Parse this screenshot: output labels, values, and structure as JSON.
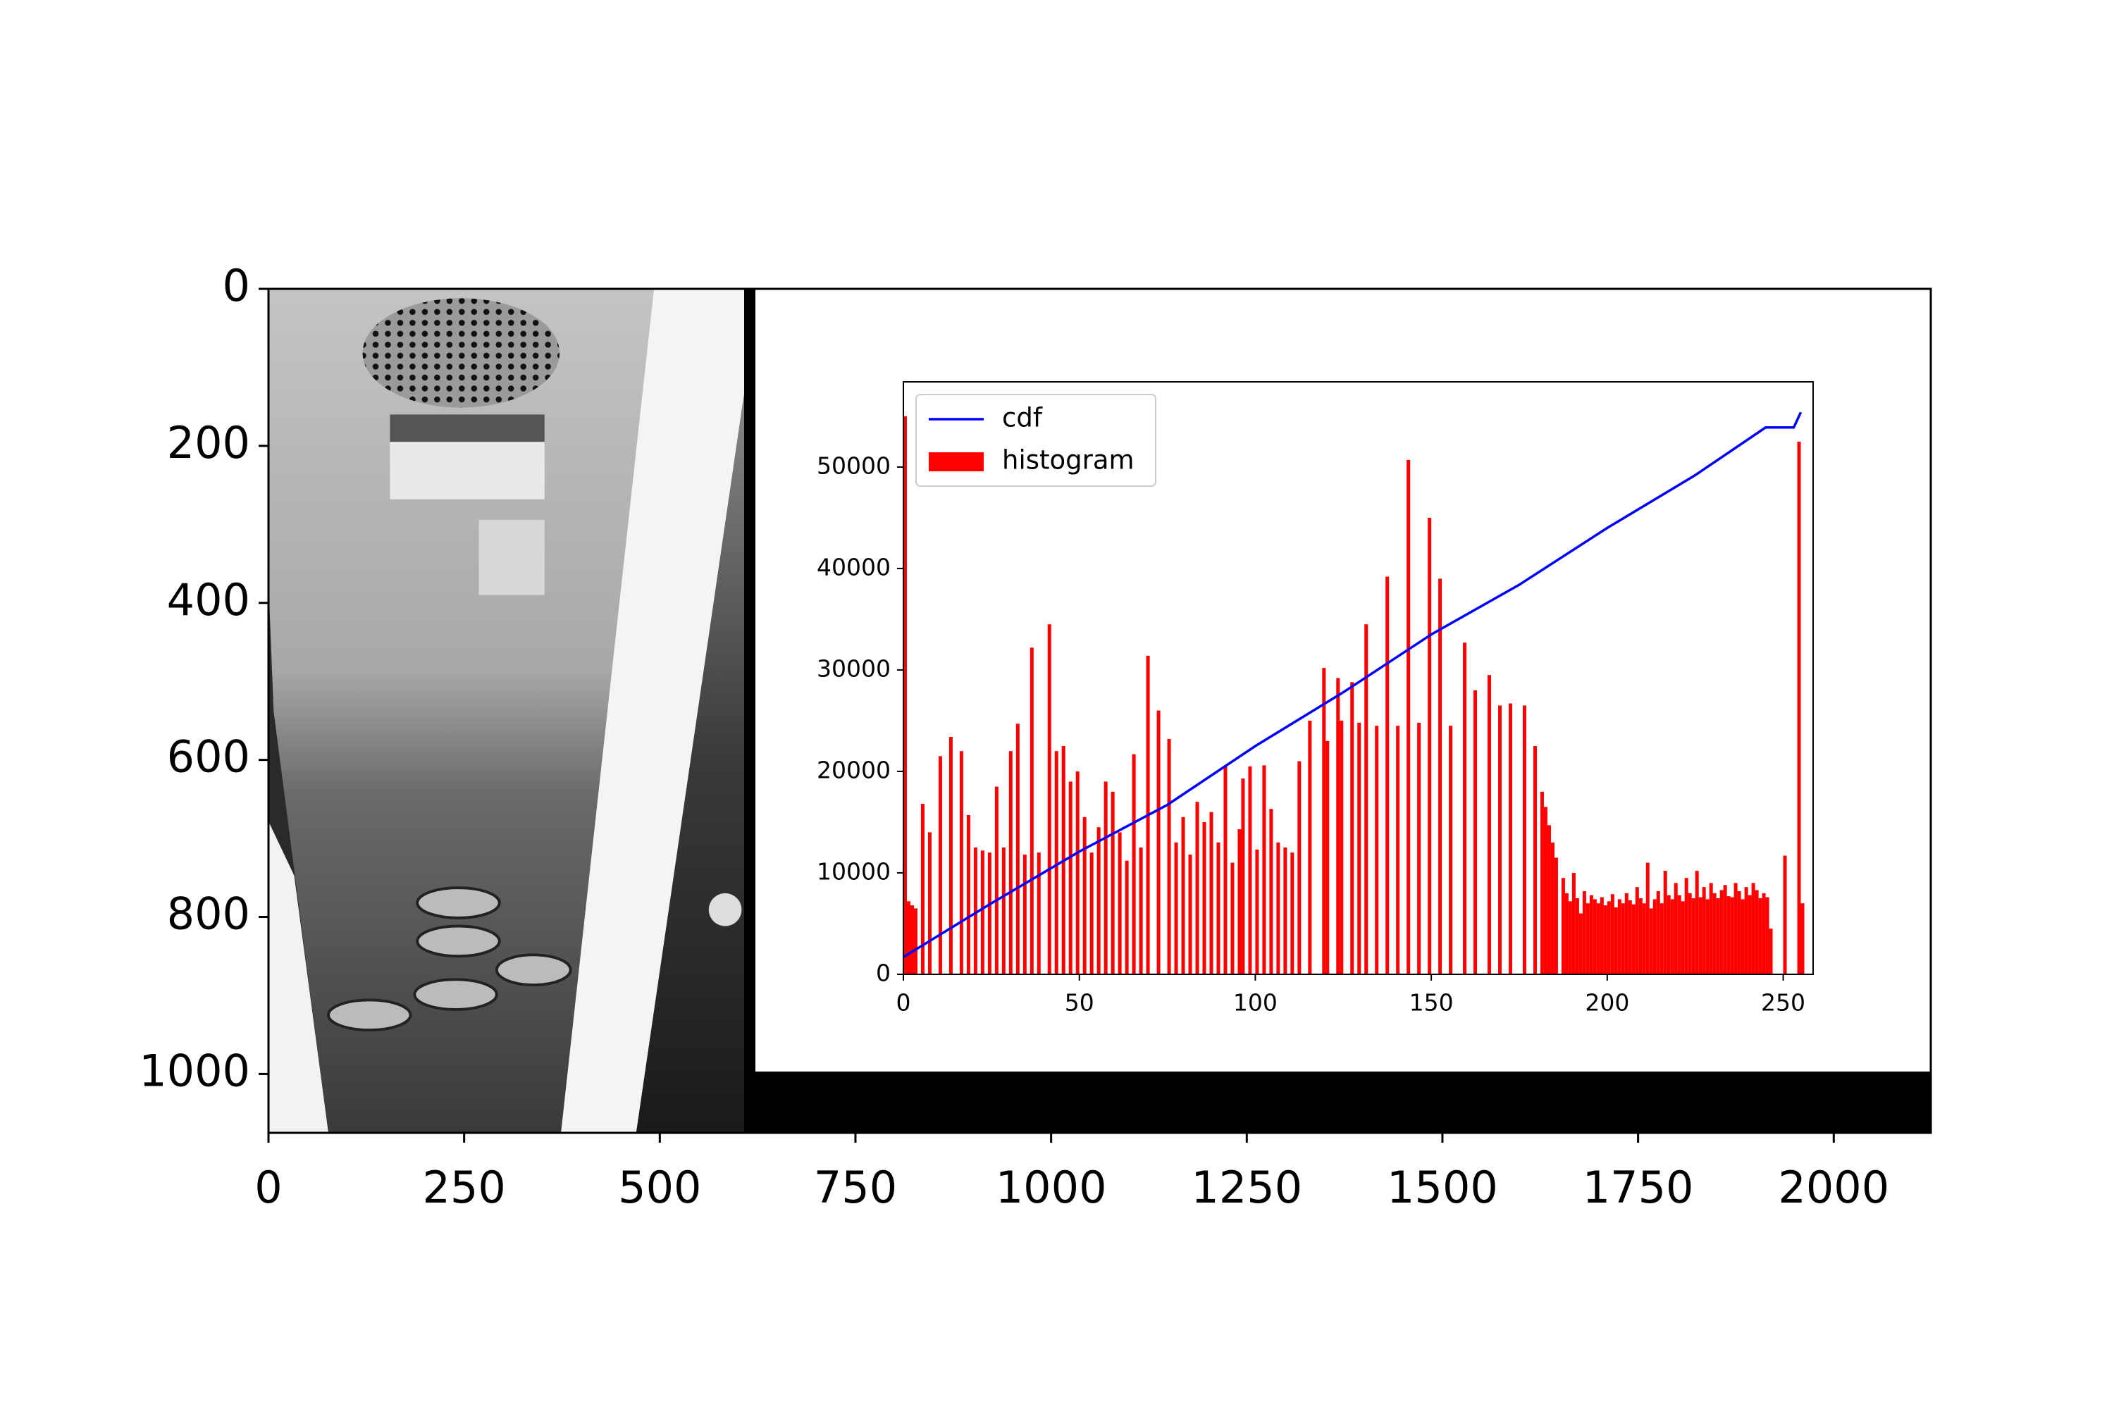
{
  "chart_data": [
    {
      "type": "image",
      "xlim": [
        0,
        2124
      ],
      "ylim": [
        1075,
        0
      ],
      "xticks": [
        0,
        250,
        500,
        750,
        1000,
        1250,
        1500,
        1750,
        2000
      ],
      "yticks": [
        0,
        200,
        400,
        600,
        800,
        1000
      ]
    },
    {
      "type": "histogram",
      "xlim": [
        0,
        258.5
      ],
      "ylim": [
        0,
        58400
      ],
      "xticks": [
        0,
        50,
        100,
        150,
        200,
        250
      ],
      "yticks": [
        0,
        10000,
        20000,
        30000,
        40000,
        50000
      ],
      "legend": "upper left",
      "bins": [
        0,
        1,
        2,
        3,
        4,
        5,
        6,
        7,
        8,
        9,
        10,
        11,
        12,
        13,
        14,
        15,
        16,
        17,
        18,
        19,
        20,
        21,
        22,
        23,
        24,
        25,
        26,
        27,
        28,
        29,
        30,
        31,
        32,
        33,
        34,
        35,
        36,
        37,
        38,
        39,
        40,
        41,
        42,
        43,
        44,
        45,
        46,
        47,
        48,
        49,
        50,
        51,
        52,
        53,
        54,
        55,
        56,
        57,
        58,
        59,
        60,
        61,
        62,
        63,
        64,
        65,
        66,
        67,
        68,
        69,
        70,
        71,
        72,
        73,
        74,
        75,
        76,
        77,
        78,
        79,
        80,
        81,
        82,
        83,
        84,
        85,
        86,
        87,
        88,
        89,
        90,
        91,
        92,
        93,
        94,
        95,
        96,
        97,
        98,
        99,
        100,
        101,
        102,
        103,
        104,
        105,
        106,
        107,
        108,
        109,
        110,
        111,
        112,
        113,
        114,
        115,
        116,
        117,
        118,
        119,
        120,
        121,
        122,
        123,
        124,
        125,
        126,
        127,
        128,
        129,
        130,
        131,
        132,
        133,
        134,
        135,
        136,
        137,
        138,
        139,
        140,
        141,
        142,
        143,
        144,
        145,
        146,
        147,
        148,
        149,
        150,
        151,
        152,
        153,
        154,
        155,
        156,
        157,
        158,
        159,
        160,
        161,
        162,
        163,
        164,
        165,
        166,
        167,
        168,
        169,
        170,
        171,
        172,
        173,
        174,
        175,
        176,
        177,
        178,
        179,
        180,
        181,
        182,
        183,
        184,
        185,
        186,
        187,
        188,
        189,
        190,
        191,
        192,
        193,
        194,
        195,
        196,
        197,
        198,
        199,
        200,
        201,
        202,
        203,
        204,
        205,
        206,
        207,
        208,
        209,
        210,
        211,
        212,
        213,
        214,
        215,
        216,
        217,
        218,
        219,
        220,
        221,
        222,
        223,
        224,
        225,
        226,
        227,
        228,
        229,
        230,
        231,
        232,
        233,
        234,
        235,
        236,
        237,
        238,
        239,
        240,
        241,
        242,
        243,
        244,
        245,
        246,
        247,
        248,
        249,
        250,
        251,
        252,
        253,
        254,
        255,
        256
      ],
      "histogram": {
        "name": "histogram",
        "color": "#ff0000",
        "values": [
          55000,
          7200,
          6800,
          6500,
          0,
          16800,
          0,
          14000,
          0,
          0,
          21500,
          0,
          0,
          23400,
          0,
          0,
          22000,
          0,
          15700,
          0,
          12500,
          0,
          12200,
          0,
          12000,
          0,
          18500,
          0,
          12500,
          0,
          22000,
          0,
          24700,
          0,
          11800,
          0,
          32200,
          0,
          12000,
          0,
          0,
          34500,
          0,
          22000,
          0,
          22500,
          0,
          19000,
          0,
          20000,
          0,
          15500,
          0,
          12000,
          0,
          14500,
          0,
          19000,
          0,
          18000,
          0,
          14000,
          0,
          11200,
          0,
          21700,
          0,
          12500,
          0,
          31400,
          0,
          0,
          26000,
          0,
          0,
          23200,
          0,
          13000,
          0,
          15500,
          0,
          11800,
          0,
          17000,
          0,
          15000,
          0,
          16000,
          0,
          13000,
          0,
          20500,
          0,
          11000,
          0,
          14300,
          19300,
          0,
          20500,
          0,
          12300,
          0,
          20600,
          0,
          16300,
          0,
          13000,
          0,
          12500,
          0,
          12000,
          0,
          21000,
          0,
          0,
          25000,
          0,
          0,
          0,
          30200,
          23000,
          0,
          0,
          29200,
          25000,
          0,
          0,
          28800,
          0,
          24800,
          0,
          34500,
          0,
          0,
          24500,
          0,
          0,
          39200,
          0,
          0,
          24500,
          0,
          0,
          50700,
          0,
          0,
          24800,
          0,
          0,
          45000,
          0,
          0,
          39000,
          0,
          0,
          24500,
          0,
          0,
          0,
          32700,
          0,
          0,
          28000,
          0,
          0,
          0,
          29500,
          0,
          0,
          26500,
          0,
          0,
          26700,
          0,
          0,
          0,
          26500,
          0,
          0,
          22500,
          0,
          18000,
          16500,
          14700,
          13000,
          11500,
          0,
          9500,
          8000,
          7200,
          10000,
          7500,
          6000,
          8200,
          7000,
          7800,
          7400,
          7000,
          7600,
          6800,
          7200,
          7900,
          6600,
          7400,
          7000,
          8000,
          7300,
          6900,
          8600,
          7500,
          7000,
          11000,
          6500,
          7400,
          8200,
          7000,
          10200,
          7800,
          7400,
          9000,
          7800,
          7200,
          9500,
          8000,
          7500,
          10200,
          7600,
          8600,
          7400,
          9000,
          8000,
          7500,
          8300,
          8800,
          7700,
          7600,
          9000,
          8200,
          7400,
          8600,
          7800,
          9000,
          8300,
          7500,
          8000,
          7600,
          4500,
          0,
          0,
          0,
          11700,
          0,
          0,
          0,
          52500,
          7000
        ]
      },
      "cdf": {
        "name": "cdf",
        "color": "#0000ff",
        "x": [
          0,
          25,
          50,
          75,
          100,
          125,
          150,
          175,
          200,
          225,
          245,
          253,
          255
        ],
        "values": [
          1700,
          7000,
          12100,
          16700,
          22500,
          27800,
          33500,
          38400,
          44000,
          49200,
          53900,
          53900,
          55400
        ]
      }
    }
  ]
}
